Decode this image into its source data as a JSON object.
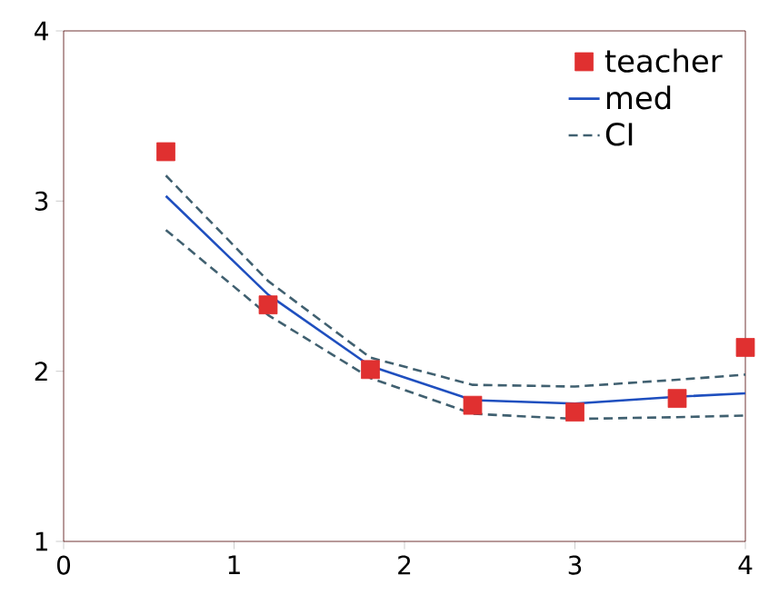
{
  "chart_data": {
    "type": "line",
    "x": [
      0.6,
      1.2,
      1.8,
      2.4,
      3.0,
      3.6,
      4.0
    ],
    "series": [
      {
        "name": "teacher",
        "type": "scatter",
        "marker": "square",
        "color": "#e03030",
        "values": [
          3.29,
          2.39,
          2.01,
          1.8,
          1.76,
          1.84,
          2.14
        ]
      },
      {
        "name": "med",
        "color": "#1f4fbf",
        "line_style": "solid",
        "values": [
          3.03,
          2.45,
          2.03,
          1.83,
          1.81,
          1.85,
          1.87
        ]
      },
      {
        "name": "CI",
        "color": "#406070",
        "line_style": "dashed",
        "values": [
          3.15,
          2.53,
          2.08,
          1.92,
          1.91,
          1.95,
          1.98
        ]
      },
      {
        "color": "#406070",
        "line_style": "dashed",
        "values": [
          2.83,
          2.33,
          1.96,
          1.75,
          1.72,
          1.73,
          1.74
        ]
      }
    ],
    "xlim": [
      0,
      4
    ],
    "ylim": [
      1,
      4
    ],
    "xticks": [
      0,
      1,
      2,
      3,
      4
    ],
    "yticks": [
      1,
      2,
      3,
      4
    ],
    "grid": false,
    "legend": "top right"
  }
}
